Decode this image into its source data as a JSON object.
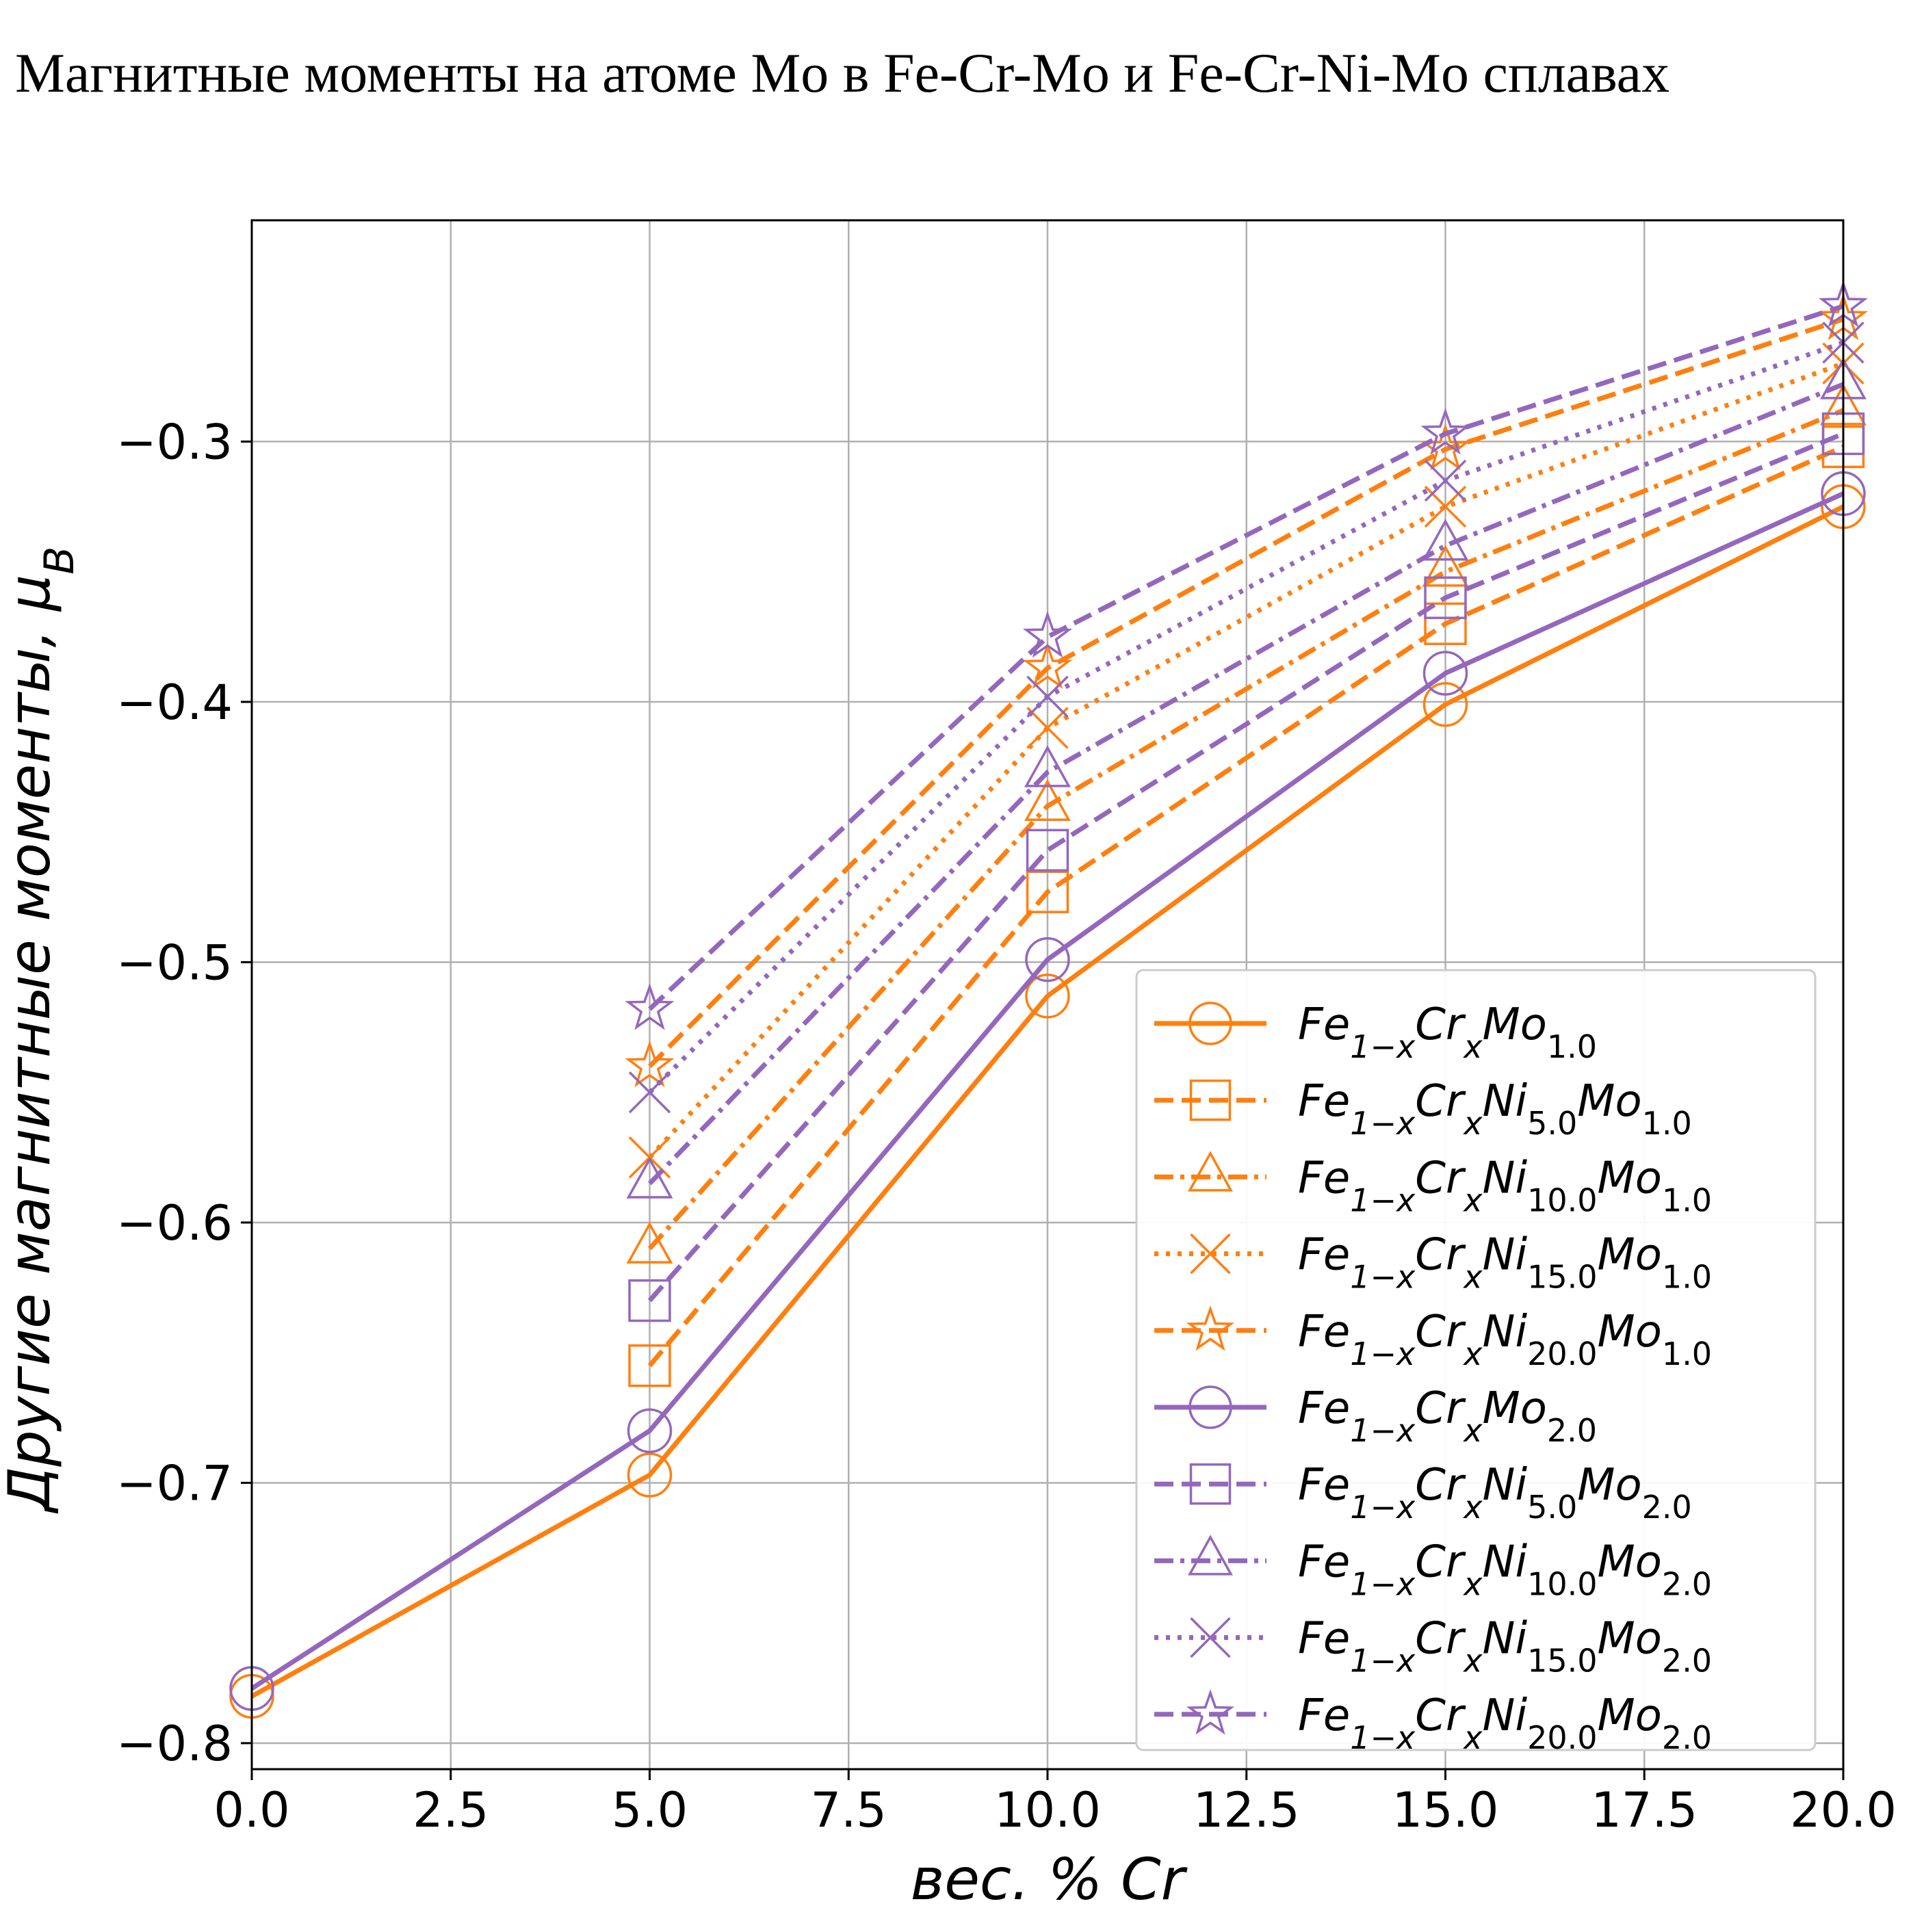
{
  "chart_data": {
    "type": "line",
    "title": "Магнитные моменты на атоме Mo в Fe-Cr-Mo и Fe-Cr-Ni-Mo сплавах",
    "xlabel": "вес. % Cr",
    "ylabel": "Другие магнитные моменты, μ_B",
    "xlim": [
      0.0,
      20.0
    ],
    "ylim": [
      -0.81,
      -0.215
    ],
    "xticks": [
      0.0,
      2.5,
      5.0,
      7.5,
      10.0,
      12.5,
      15.0,
      17.5,
      20.0
    ],
    "xtick_labels": [
      "0.0",
      "2.5",
      "5.0",
      "7.5",
      "10.0",
      "12.5",
      "15.0",
      "17.5",
      "20.0"
    ],
    "yticks": [
      -0.8,
      -0.7,
      -0.6,
      -0.5,
      -0.4,
      -0.3
    ],
    "ytick_labels": [
      "−0.8",
      "−0.7",
      "−0.6",
      "−0.5",
      "−0.4",
      "−0.3"
    ],
    "grid": true,
    "legend_position": "lower-right",
    "series": [
      {
        "name": "Fe_{1−x}Cr_xMo_{1.0}",
        "color": "#ff7f0e",
        "marker": "circle",
        "linestyle": "solid",
        "x": [
          0,
          5,
          10,
          15,
          20
        ],
        "y": [
          -0.782,
          -0.697,
          -0.513,
          -0.401,
          -0.325
        ]
      },
      {
        "name": "Fe_{1−x}Cr_xNi_{5.0}Mo_{1.0}",
        "color": "#ff7f0e",
        "marker": "square",
        "linestyle": "dashed",
        "x": [
          5,
          10,
          15,
          20
        ],
        "y": [
          -0.655,
          -0.473,
          -0.37,
          -0.302
        ]
      },
      {
        "name": "Fe_{1−x}Cr_xNi_{10.0}Mo_{1.0}",
        "color": "#ff7f0e",
        "marker": "triangle",
        "linestyle": "dashdot",
        "x": [
          5,
          10,
          15,
          20
        ],
        "y": [
          -0.61,
          -0.44,
          -0.35,
          -0.288
        ]
      },
      {
        "name": "Fe_{1−x}Cr_xNi_{15.0}Mo_{1.0}",
        "color": "#ff7f0e",
        "marker": "x",
        "linestyle": "dotted",
        "x": [
          5,
          10,
          15,
          20
        ],
        "y": [
          -0.575,
          -0.41,
          -0.325,
          -0.27
        ]
      },
      {
        "name": "Fe_{1−x}Cr_xNi_{20.0}Mo_{1.0}",
        "color": "#ff7f0e",
        "marker": "star",
        "linestyle": "dashed",
        "x": [
          5,
          10,
          15,
          20
        ],
        "y": [
          -0.54,
          -0.387,
          -0.303,
          -0.253
        ]
      },
      {
        "name": "Fe_{1−x}Cr_xMo_{2.0}",
        "color": "#9467bd",
        "marker": "circle",
        "linestyle": "solid",
        "x": [
          0,
          5,
          10,
          15,
          20
        ],
        "y": [
          -0.779,
          -0.68,
          -0.499,
          -0.389,
          -0.32
        ]
      },
      {
        "name": "Fe_{1−x}Cr_xNi_{5.0}Mo_{2.0}",
        "color": "#9467bd",
        "marker": "square",
        "linestyle": "dashed",
        "x": [
          5,
          10,
          15,
          20
        ],
        "y": [
          -0.63,
          -0.457,
          -0.36,
          -0.297
        ]
      },
      {
        "name": "Fe_{1−x}Cr_xNi_{10.0}Mo_{2.0}",
        "color": "#9467bd",
        "marker": "triangle",
        "linestyle": "dashdot",
        "x": [
          5,
          10,
          15,
          20
        ],
        "y": [
          -0.585,
          -0.427,
          -0.34,
          -0.278
        ]
      },
      {
        "name": "Fe_{1−x}Cr_xNi_{15.0}Mo_{2.0}",
        "color": "#9467bd",
        "marker": "x",
        "linestyle": "dotted",
        "x": [
          5,
          10,
          15,
          20
        ],
        "y": [
          -0.55,
          -0.398,
          -0.315,
          -0.262
        ]
      },
      {
        "name": "Fe_{1−x}Cr_xNi_{20.0}Mo_{2.0}",
        "color": "#9467bd",
        "marker": "star",
        "linestyle": "dashed",
        "x": [
          5,
          10,
          15,
          20
        ],
        "y": [
          -0.518,
          -0.375,
          -0.297,
          -0.248
        ]
      }
    ]
  }
}
